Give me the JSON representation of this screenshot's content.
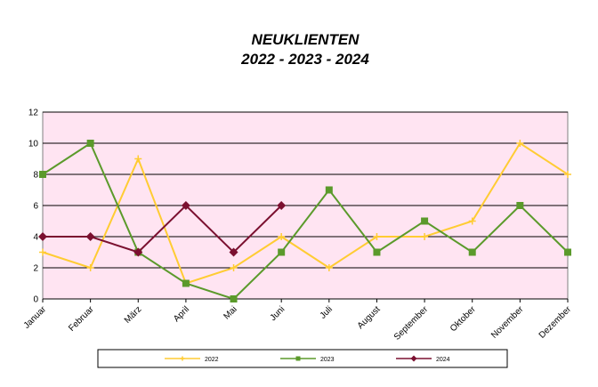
{
  "chart_data": {
    "type": "line",
    "title": "NEUKLIENTEN",
    "subtitle": "2022 - 2023 - 2024",
    "categories": [
      "Januar",
      "Februar",
      "März",
      "April",
      "Mai",
      "Juni",
      "Juli",
      "August",
      "September",
      "Oktober",
      "November",
      "Dezember"
    ],
    "series": [
      {
        "name": "2022",
        "color": "#ffcc33",
        "marker": "star",
        "values": [
          3,
          2,
          9,
          1,
          2,
          4,
          2,
          4,
          4,
          5,
          10,
          8
        ]
      },
      {
        "name": "2023",
        "color": "#5b9a2b",
        "marker": "square",
        "values": [
          8,
          10,
          3,
          1,
          0,
          3,
          7,
          3,
          5,
          3,
          6,
          3
        ]
      },
      {
        "name": "2024",
        "color": "#7b1030",
        "marker": "diamond",
        "values": [
          4,
          4,
          3,
          6,
          3,
          6,
          null,
          null,
          null,
          null,
          null,
          null
        ]
      }
    ],
    "ylim": [
      0,
      12
    ],
    "yticks": [
      0,
      2,
      4,
      6,
      8,
      10,
      12
    ],
    "grid": true,
    "legend": "bottom"
  }
}
